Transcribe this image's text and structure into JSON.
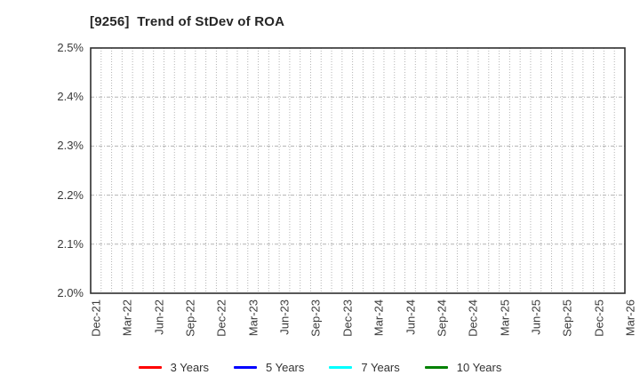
{
  "title": "[9256]  Trend of StDev of ROA",
  "chart_data": {
    "type": "line",
    "title": "[9256]  Trend of StDev of ROA",
    "x_tick_labels": [
      "Dec-21",
      "Mar-22",
      "Jun-22",
      "Sep-22",
      "Dec-22",
      "Mar-23",
      "Jun-23",
      "Sep-23",
      "Dec-23",
      "Mar-24",
      "Jun-24",
      "Sep-24",
      "Dec-24",
      "Mar-25",
      "Jun-25",
      "Sep-25",
      "Dec-25",
      "Mar-26"
    ],
    "x_minor_divisions_per_interval": 3,
    "ylim": [
      2.0,
      2.5
    ],
    "y_ticks": [
      {
        "value": 2.0,
        "label": "2.0%"
      },
      {
        "value": 2.1,
        "label": "2.1%"
      },
      {
        "value": 2.2,
        "label": "2.2%"
      },
      {
        "value": 2.3,
        "label": "2.3%"
      },
      {
        "value": 2.4,
        "label": "2.4%"
      },
      {
        "value": 2.5,
        "label": "2.5%"
      }
    ],
    "grid": true,
    "legend_position": "bottom-center",
    "series": [
      {
        "name": "3 Years",
        "color": "#ff0000",
        "values": []
      },
      {
        "name": "5 Years",
        "color": "#0000ff",
        "values": []
      },
      {
        "name": "7 Years",
        "color": "#00ffff",
        "values": []
      },
      {
        "name": "10 Years",
        "color": "#008000",
        "values": []
      }
    ]
  },
  "styles": {
    "frame_color": "#2e2e2e",
    "grid_color": "#b3b3b3",
    "label_color": "#3a3a3a",
    "title_color": "#262626",
    "background": "#ffffff"
  }
}
